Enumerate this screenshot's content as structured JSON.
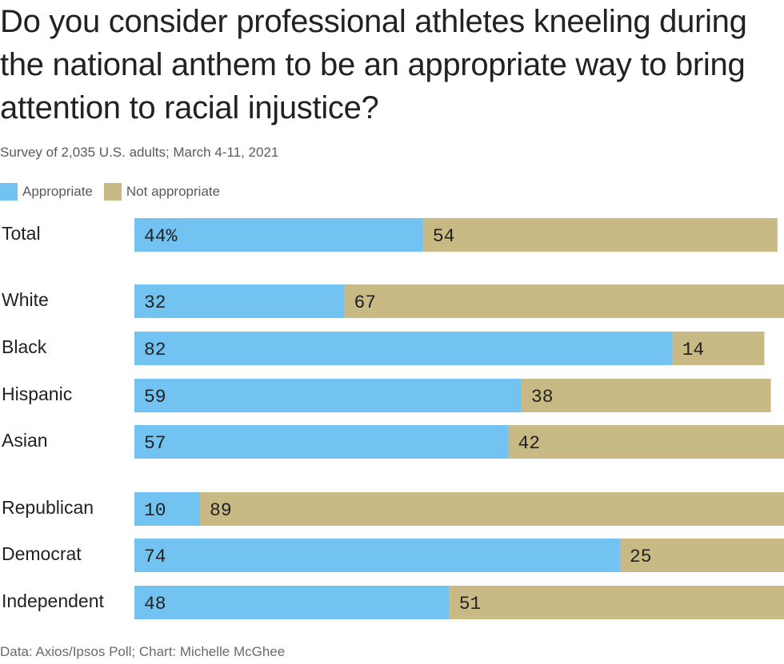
{
  "title": "Do you consider professional athletes kneeling during the national anthem to be an appropriate way to bring attention to racial injustice?",
  "subtitle": "Survey of 2,035 U.S. adults; March 4-11, 2021",
  "source": "Data: Axios/Ipsos Poll; Chart: Michelle McGhee",
  "legend": [
    {
      "label": "Appropriate",
      "color": "#72c3f2"
    },
    {
      "label": "Not appropriate",
      "color": "#c8b985"
    }
  ],
  "chart_data": {
    "type": "bar",
    "orientation": "horizontal",
    "stacked": true,
    "categories": [
      "Total",
      "White",
      "Black",
      "Hispanic",
      "Asian",
      "Republican",
      "Democrat",
      "Independent"
    ],
    "groups": [
      [
        "Total"
      ],
      [
        "White",
        "Black",
        "Hispanic",
        "Asian"
      ],
      [
        "Republican",
        "Democrat",
        "Independent"
      ]
    ],
    "series": [
      {
        "name": "Appropriate",
        "color": "#72c3f2",
        "values": [
          44,
          32,
          82,
          59,
          57,
          10,
          74,
          48
        ],
        "labels": [
          "44%",
          "32",
          "82",
          "59",
          "57",
          "10",
          "74",
          "48"
        ]
      },
      {
        "name": "Not appropriate",
        "color": "#c8b985",
        "values": [
          54,
          67,
          14,
          38,
          42,
          89,
          25,
          51
        ],
        "labels": [
          "54",
          "67",
          "14",
          "38",
          "42",
          "89",
          "25",
          "51"
        ]
      }
    ],
    "xlim": [
      0,
      99
    ],
    "grid": false,
    "legend_position": "top-left"
  }
}
